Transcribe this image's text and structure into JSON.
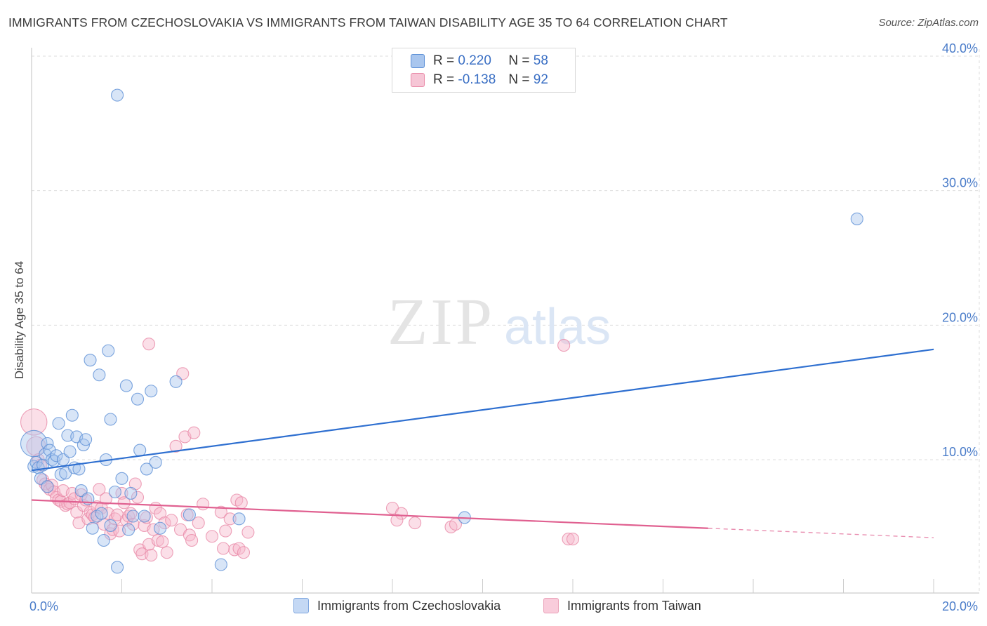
{
  "header": {
    "title": "IMMIGRANTS FROM CZECHOSLOVAKIA VS IMMIGRANTS FROM TAIWAN DISABILITY AGE 35 TO 64 CORRELATION CHART",
    "source": "Source: ZipAtlas.com"
  },
  "watermark": {
    "zip": "ZIP",
    "atlas": "atlas"
  },
  "legend": {
    "series1": {
      "r_label": "R = ",
      "r_value": "0.220",
      "n_label": "N = ",
      "n_value": "58"
    },
    "series2": {
      "r_label": "R = ",
      "r_value": "-0.138",
      "n_label": "N = ",
      "n_value": "92"
    }
  },
  "colors": {
    "blue_fill": "#a9c6ee",
    "blue_stroke": "#5b8fd6",
    "blue_line": "#2e6fd0",
    "pink_fill": "#f6b8cc",
    "pink_stroke": "#e98aa8",
    "pink_line": "#e06090",
    "grid": "#dddddd",
    "tick_text": "#4a7cc9"
  },
  "chart_data": {
    "type": "scatter",
    "title": "IMMIGRANTS FROM CZECHOSLOVAKIA VS IMMIGRANTS FROM TAIWAN DISABILITY AGE 35 TO 64 CORRELATION CHART",
    "ylabel": "Disability Age 35 to 64",
    "xlabel": "",
    "xlim": [
      0,
      20
    ],
    "ylim": [
      0,
      42
    ],
    "x_tick_labels": [
      "0.0%",
      "20.0%"
    ],
    "y_ticks": [
      {
        "value": 10,
        "label": "10.0%"
      },
      {
        "value": 20,
        "label": "20.0%"
      },
      {
        "value": 30,
        "label": "30.0%"
      },
      {
        "value": 40,
        "label": "40.0%"
      }
    ],
    "series": [
      {
        "name": "Immigrants from Czechoslovakia",
        "color": "blue",
        "R": 0.22,
        "N": 58,
        "trend": {
          "x0": 0.0,
          "y0": 9.2,
          "x1": 20.0,
          "y1": 18.2
        },
        "points": [
          [
            0.05,
            11.2,
            2.2
          ],
          [
            0.05,
            9.5,
            1
          ],
          [
            0.1,
            9.8,
            1
          ],
          [
            0.15,
            9.4,
            1
          ],
          [
            0.2,
            8.6,
            1
          ],
          [
            0.25,
            9.6,
            1
          ],
          [
            0.3,
            10.4,
            1
          ],
          [
            0.35,
            11.2,
            1
          ],
          [
            0.35,
            8.0,
            1
          ],
          [
            0.4,
            10.7,
            1
          ],
          [
            0.45,
            10.0,
            1
          ],
          [
            0.5,
            9.9,
            1
          ],
          [
            0.55,
            10.3,
            1
          ],
          [
            0.6,
            12.7,
            1
          ],
          [
            0.65,
            8.9,
            1
          ],
          [
            0.7,
            10.0,
            1
          ],
          [
            0.75,
            9.0,
            1
          ],
          [
            0.8,
            11.8,
            1
          ],
          [
            0.85,
            10.6,
            1
          ],
          [
            0.9,
            13.3,
            1
          ],
          [
            0.95,
            9.4,
            1
          ],
          [
            1.0,
            11.7,
            1
          ],
          [
            1.05,
            9.3,
            1
          ],
          [
            1.1,
            7.7,
            1
          ],
          [
            1.15,
            11.1,
            1
          ],
          [
            1.2,
            11.5,
            1
          ],
          [
            1.25,
            7.1,
            1
          ],
          [
            1.3,
            17.4,
            1
          ],
          [
            1.35,
            4.9,
            1
          ],
          [
            1.45,
            5.8,
            1
          ],
          [
            1.5,
            16.3,
            1
          ],
          [
            1.55,
            6.0,
            1
          ],
          [
            1.6,
            4.0,
            1
          ],
          [
            1.65,
            10.0,
            1
          ],
          [
            1.7,
            18.1,
            1
          ],
          [
            1.75,
            13.0,
            1
          ],
          [
            1.75,
            5.1,
            1
          ],
          [
            1.85,
            7.6,
            1
          ],
          [
            1.9,
            37.1,
            1
          ],
          [
            1.9,
            2.0,
            1
          ],
          [
            2.0,
            8.6,
            1
          ],
          [
            2.1,
            15.5,
            1
          ],
          [
            2.15,
            4.8,
            1
          ],
          [
            2.2,
            7.5,
            1
          ],
          [
            2.25,
            5.8,
            1
          ],
          [
            2.35,
            14.5,
            1
          ],
          [
            2.4,
            10.7,
            1
          ],
          [
            2.5,
            5.8,
            1
          ],
          [
            2.55,
            9.3,
            1
          ],
          [
            2.65,
            15.1,
            1
          ],
          [
            2.75,
            9.8,
            1
          ],
          [
            2.85,
            4.9,
            1
          ],
          [
            3.2,
            15.8,
            1
          ],
          [
            3.5,
            5.9,
            1
          ],
          [
            4.2,
            2.2,
            1
          ],
          [
            4.6,
            5.6,
            1
          ],
          [
            9.6,
            5.7,
            1
          ],
          [
            18.3,
            27.9,
            1
          ]
        ]
      },
      {
        "name": "Immigrants from Taiwan",
        "color": "pink",
        "R": -0.138,
        "N": 92,
        "trend": {
          "x0": 0.0,
          "y0": 7.0,
          "x1": 15.0,
          "y1": 4.9,
          "dash_x1": 20.0,
          "dash_y1": 4.2
        },
        "points": [
          [
            0.05,
            12.8,
            2.2
          ],
          [
            0.1,
            11.0,
            1.6
          ],
          [
            0.15,
            10.0,
            1
          ],
          [
            0.2,
            9.6,
            1
          ],
          [
            0.25,
            8.5,
            1
          ],
          [
            0.3,
            8.2,
            1
          ],
          [
            0.35,
            8.0,
            1
          ],
          [
            0.4,
            7.8,
            1
          ],
          [
            0.45,
            8.1,
            1
          ],
          [
            0.5,
            7.6,
            1
          ],
          [
            0.55,
            7.2,
            1
          ],
          [
            0.6,
            7.0,
            1
          ],
          [
            0.65,
            6.9,
            1
          ],
          [
            0.7,
            7.7,
            1
          ],
          [
            0.75,
            6.6,
            1
          ],
          [
            0.8,
            6.7,
            1
          ],
          [
            0.85,
            6.8,
            1
          ],
          [
            0.9,
            7.5,
            1
          ],
          [
            0.95,
            7.1,
            1
          ],
          [
            1.0,
            6.1,
            1
          ],
          [
            1.05,
            5.3,
            1
          ],
          [
            1.1,
            7.4,
            1
          ],
          [
            1.15,
            6.6,
            1
          ],
          [
            1.2,
            7.0,
            1
          ],
          [
            1.25,
            5.6,
            1
          ],
          [
            1.3,
            6.1,
            1
          ],
          [
            1.35,
            5.9,
            1
          ],
          [
            1.4,
            5.7,
            1
          ],
          [
            1.45,
            6.5,
            1
          ],
          [
            1.5,
            7.8,
            1
          ],
          [
            1.55,
            6.4,
            1
          ],
          [
            1.6,
            5.2,
            1
          ],
          [
            1.65,
            7.1,
            1
          ],
          [
            1.7,
            6.0,
            1
          ],
          [
            1.75,
            4.5,
            1
          ],
          [
            1.8,
            4.8,
            1
          ],
          [
            1.85,
            5.6,
            1
          ],
          [
            1.9,
            5.9,
            1
          ],
          [
            1.95,
            4.7,
            1
          ],
          [
            2.0,
            7.5,
            1
          ],
          [
            2.05,
            6.8,
            1
          ],
          [
            2.1,
            5.5,
            1
          ],
          [
            2.15,
            5.8,
            1
          ],
          [
            2.2,
            6.0,
            1
          ],
          [
            2.25,
            5.2,
            1
          ],
          [
            2.3,
            8.2,
            1
          ],
          [
            2.35,
            7.2,
            1
          ],
          [
            2.4,
            3.3,
            1
          ],
          [
            2.45,
            3.0,
            1
          ],
          [
            2.5,
            5.1,
            1
          ],
          [
            2.55,
            5.7,
            1
          ],
          [
            2.6,
            3.7,
            1
          ],
          [
            2.65,
            2.9,
            1
          ],
          [
            2.7,
            4.8,
            1
          ],
          [
            2.75,
            6.4,
            1
          ],
          [
            2.8,
            4.0,
            1
          ],
          [
            2.85,
            6.0,
            1
          ],
          [
            2.9,
            3.9,
            1
          ],
          [
            2.95,
            5.3,
            1
          ],
          [
            3.0,
            3.1,
            1
          ],
          [
            3.1,
            5.5,
            1
          ],
          [
            3.2,
            11.0,
            1
          ],
          [
            3.3,
            4.8,
            1
          ],
          [
            3.35,
            16.4,
            1
          ],
          [
            3.4,
            11.7,
            1
          ],
          [
            3.45,
            5.9,
            1
          ],
          [
            3.5,
            4.4,
            1
          ],
          [
            3.55,
            4.0,
            1
          ],
          [
            3.6,
            12.0,
            1
          ],
          [
            3.7,
            5.3,
            1
          ],
          [
            3.8,
            6.7,
            1
          ],
          [
            4.0,
            4.3,
            1
          ],
          [
            4.2,
            6.1,
            1
          ],
          [
            4.3,
            4.7,
            1
          ],
          [
            4.4,
            5.6,
            1
          ],
          [
            4.5,
            3.3,
            1
          ],
          [
            4.55,
            7.0,
            1
          ],
          [
            4.6,
            3.4,
            1
          ],
          [
            4.7,
            3.1,
            1
          ],
          [
            4.8,
            4.6,
            1
          ],
          [
            2.6,
            18.6,
            1
          ],
          [
            11.8,
            18.5,
            1
          ],
          [
            8.0,
            6.4,
            1
          ],
          [
            8.2,
            6.0,
            1
          ],
          [
            8.1,
            5.5,
            1
          ],
          [
            8.5,
            5.3,
            1
          ],
          [
            9.3,
            5.0,
            1
          ],
          [
            9.4,
            5.2,
            1
          ],
          [
            11.9,
            4.1,
            1
          ],
          [
            12.0,
            4.1,
            1
          ],
          [
            4.25,
            3.4,
            1
          ],
          [
            4.65,
            6.8,
            1
          ]
        ]
      }
    ]
  },
  "bottom_legend": {
    "item1": "Immigrants from Czechoslovakia",
    "item2": "Immigrants from Taiwan"
  }
}
